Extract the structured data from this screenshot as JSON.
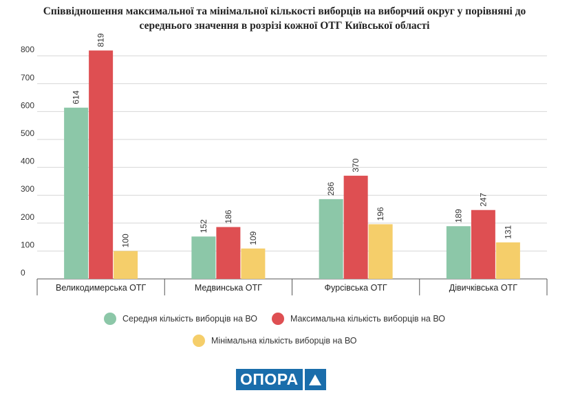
{
  "title": {
    "line1": "Співвідношення максимальної та мінімальної кількості виборців на виборчий округ у порівняні до",
    "line2": "середнього значення в розрізі кожної ОТГ Київської області"
  },
  "chart_data": {
    "type": "bar",
    "title": "Співвідношення максимальної та мінімальної кількості виборців на виборчий округ у порівняні до середнього значення в розрізі кожної ОТГ Київської області",
    "categories": [
      "Великодимерська ОТГ",
      "Медвинська ОТГ",
      "Фурсівська ОТГ",
      "Дівичківська ОТГ"
    ],
    "series": [
      {
        "name": "Середня кількість виборців на ВО",
        "color": "#8cc7a8",
        "values": [
          614,
          152,
          286,
          189
        ]
      },
      {
        "name": "Максимальна кількість виборців на ВО",
        "color": "#de4f52",
        "values": [
          819,
          186,
          370,
          247
        ]
      },
      {
        "name": "Мінімальна кількість виборців на ВО",
        "color": "#f5ce6a",
        "values": [
          100,
          109,
          196,
          131
        ]
      }
    ],
    "yticks": [
      0,
      100,
      200,
      300,
      400,
      500,
      600,
      700,
      800
    ],
    "ylim": [
      0,
      850
    ],
    "xlabel": "",
    "ylabel": "",
    "grid": true,
    "legend_position": "bottom"
  },
  "logo": {
    "text": "ОПОРА"
  }
}
